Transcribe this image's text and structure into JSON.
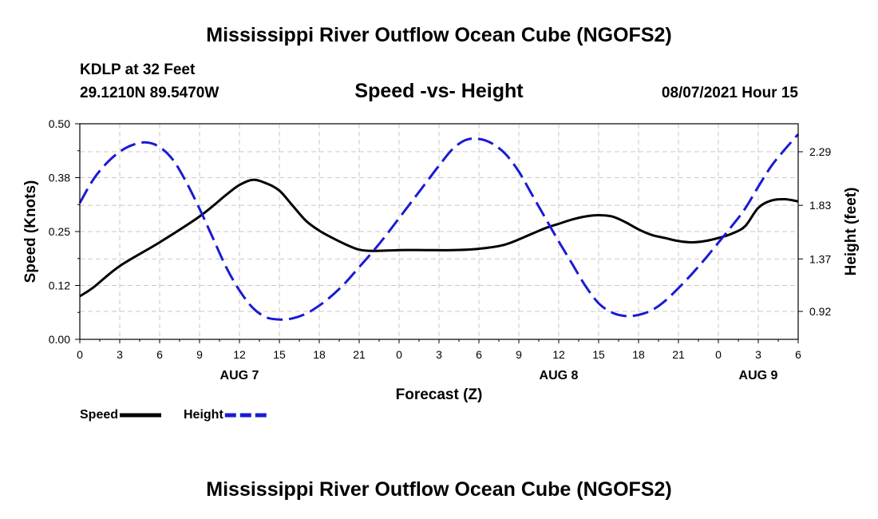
{
  "header": {
    "title": "Mississippi River Outflow Ocean Cube (NGOFS2)",
    "station": "KDLP at 32 Feet",
    "coordinates": "29.1210N  89.5470W",
    "subtitle": "Speed -vs- Height",
    "datetime": "08/07/2021 Hour 15"
  },
  "footer": {
    "title": "Mississippi River Outflow Ocean Cube (NGOFS2)"
  },
  "chart_data": {
    "type": "line",
    "title": "Speed -vs- Height",
    "xlabel": "Forecast (Z)",
    "ylabel": "Speed (Knots)",
    "y2label": "Height (feet)",
    "xlim": [
      0,
      54
    ],
    "ylim": [
      0.0,
      0.5
    ],
    "y2lim": [
      0.68,
      2.53
    ],
    "x_ticks": [
      0,
      3,
      6,
      9,
      12,
      15,
      18,
      21,
      24,
      27,
      30,
      33,
      36,
      39,
      42,
      45,
      48,
      51,
      54
    ],
    "x_tick_labels": [
      "0",
      "3",
      "6",
      "9",
      "12",
      "15",
      "18",
      "21",
      "0",
      "3",
      "6",
      "9",
      "12",
      "15",
      "18",
      "21",
      "0",
      "3",
      "6"
    ],
    "day_labels": [
      {
        "x": 12,
        "label": "AUG 7"
      },
      {
        "x": 36,
        "label": "AUG 8"
      },
      {
        "x": 51,
        "label": "AUG 9"
      }
    ],
    "y_ticks": [
      0.0,
      0.125,
      0.25,
      0.375,
      0.5
    ],
    "y_tick_labels": [
      "0.00",
      "0.12",
      "0.25",
      "0.38",
      "0.50"
    ],
    "y2_ticks": [
      0.92,
      1.37,
      1.83,
      2.29
    ],
    "y2_tick_labels": [
      "0.92",
      "1.37",
      "1.83",
      "2.29"
    ],
    "grid": true,
    "series": [
      {
        "name": "Speed",
        "axis": "left",
        "color": "#000000",
        "style": "solid",
        "x": [
          0,
          1,
          3,
          6,
          9,
          11,
          12,
          13,
          14,
          15,
          16,
          17,
          18,
          19,
          20,
          21,
          22,
          24,
          26,
          28,
          30,
          32,
          34,
          35,
          36,
          37,
          38,
          39,
          40,
          41,
          42,
          43,
          44,
          45,
          46,
          47,
          48,
          49,
          50,
          51,
          52,
          53,
          54
        ],
        "values": [
          0.1,
          0.12,
          0.17,
          0.225,
          0.285,
          0.335,
          0.358,
          0.37,
          0.362,
          0.345,
          0.31,
          0.275,
          0.252,
          0.235,
          0.22,
          0.208,
          0.205,
          0.207,
          0.207,
          0.207,
          0.21,
          0.22,
          0.245,
          0.258,
          0.268,
          0.278,
          0.285,
          0.288,
          0.285,
          0.272,
          0.255,
          0.242,
          0.235,
          0.228,
          0.225,
          0.228,
          0.235,
          0.245,
          0.262,
          0.305,
          0.322,
          0.325,
          0.32
        ]
      },
      {
        "name": "Height",
        "axis": "right",
        "color": "#1a1ad4",
        "style": "dashed",
        "x": [
          0,
          1,
          2,
          3,
          4,
          5,
          6,
          7,
          8,
          9,
          10,
          11,
          12,
          13,
          14,
          15,
          16,
          17,
          18,
          19,
          20,
          21,
          22,
          23,
          24,
          25,
          26,
          27,
          28,
          29,
          30,
          31,
          32,
          33,
          34,
          35,
          36,
          37,
          38,
          39,
          40,
          41,
          42,
          43,
          44,
          45,
          46,
          47,
          48,
          49,
          50,
          51,
          52,
          53,
          54
        ],
        "values": [
          1.85,
          2.05,
          2.19,
          2.29,
          2.35,
          2.37,
          2.33,
          2.22,
          2.03,
          1.8,
          1.55,
          1.3,
          1.1,
          0.95,
          0.87,
          0.85,
          0.86,
          0.9,
          0.97,
          1.06,
          1.17,
          1.3,
          1.43,
          1.57,
          1.72,
          1.87,
          2.02,
          2.17,
          2.31,
          2.39,
          2.4,
          2.36,
          2.27,
          2.12,
          1.92,
          1.72,
          1.52,
          1.33,
          1.14,
          0.99,
          0.91,
          0.88,
          0.89,
          0.93,
          1.01,
          1.12,
          1.24,
          1.37,
          1.51,
          1.65,
          1.8,
          1.99,
          2.17,
          2.31,
          2.44
        ]
      }
    ],
    "legend": [
      {
        "label": "Speed",
        "color": "#000000",
        "style": "solid"
      },
      {
        "label": "Height",
        "color": "#1a1ad4",
        "style": "dashed"
      }
    ]
  }
}
